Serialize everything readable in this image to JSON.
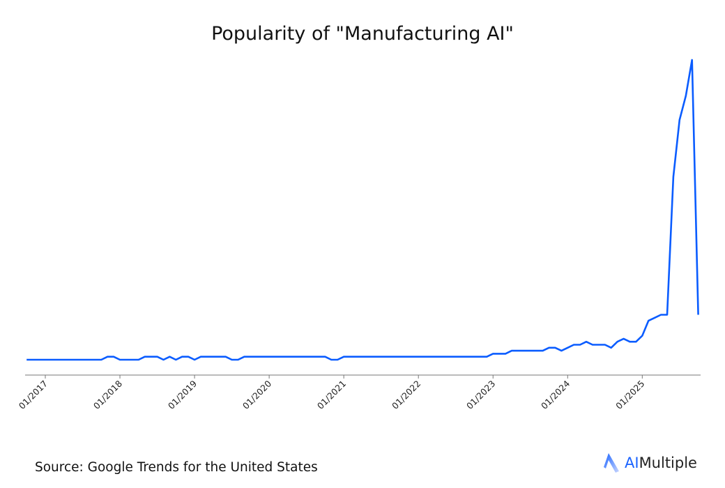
{
  "chart_data": {
    "type": "line",
    "title": "Popularity of \"Manufacturing AI\"",
    "xlabel": "",
    "ylabel": "",
    "grid": false,
    "legend": "none",
    "line_color": "#0a5cff",
    "axis_color": "#777777",
    "ylim": [
      -5,
      102
    ],
    "x_tick_labels": [
      "01/2017",
      "01/2018",
      "01/2019",
      "01/2020",
      "01/2021",
      "01/2022",
      "01/2023",
      "01/2024",
      "01/2025"
    ],
    "x": [
      "2016-10",
      "2016-11",
      "2016-12",
      "2017-01",
      "2017-02",
      "2017-03",
      "2017-04",
      "2017-05",
      "2017-06",
      "2017-07",
      "2017-08",
      "2017-09",
      "2017-10",
      "2017-11",
      "2017-12",
      "2018-01",
      "2018-02",
      "2018-03",
      "2018-04",
      "2018-05",
      "2018-06",
      "2018-07",
      "2018-08",
      "2018-09",
      "2018-10",
      "2018-11",
      "2018-12",
      "2019-01",
      "2019-02",
      "2019-03",
      "2019-04",
      "2019-05",
      "2019-06",
      "2019-07",
      "2019-08",
      "2019-09",
      "2019-10",
      "2019-11",
      "2019-12",
      "2020-01",
      "2020-02",
      "2020-03",
      "2020-04",
      "2020-05",
      "2020-06",
      "2020-07",
      "2020-08",
      "2020-09",
      "2020-10",
      "2020-11",
      "2020-12",
      "2021-01",
      "2021-02",
      "2021-03",
      "2021-04",
      "2021-05",
      "2021-06",
      "2021-07",
      "2021-08",
      "2021-09",
      "2021-10",
      "2021-11",
      "2021-12",
      "2022-01",
      "2022-02",
      "2022-03",
      "2022-04",
      "2022-05",
      "2022-06",
      "2022-07",
      "2022-08",
      "2022-09",
      "2022-10",
      "2022-11",
      "2022-12",
      "2023-01",
      "2023-02",
      "2023-03",
      "2023-04",
      "2023-05",
      "2023-06",
      "2023-07",
      "2023-08",
      "2023-09",
      "2023-10",
      "2023-11",
      "2023-12",
      "2024-01",
      "2024-02",
      "2024-03",
      "2024-04",
      "2024-05",
      "2024-06",
      "2024-07",
      "2024-08",
      "2024-09",
      "2024-10",
      "2024-11",
      "2024-12",
      "2025-01",
      "2025-02",
      "2025-03",
      "2025-04",
      "2025-05",
      "2025-06",
      "2025-07",
      "2025-08",
      "2025-09",
      "2025-10"
    ],
    "values": [
      0,
      0,
      0,
      0,
      0,
      0,
      0,
      0,
      0,
      0,
      0,
      0,
      0,
      1,
      1,
      0,
      0,
      0,
      0,
      1,
      1,
      1,
      0,
      1,
      0,
      1,
      1,
      0,
      1,
      1,
      1,
      1,
      1,
      0,
      0,
      1,
      1,
      1,
      1,
      1,
      1,
      1,
      1,
      1,
      1,
      1,
      1,
      1,
      1,
      0,
      0,
      1,
      1,
      1,
      1,
      1,
      1,
      1,
      1,
      1,
      1,
      1,
      1,
      1,
      1,
      1,
      1,
      1,
      1,
      1,
      1,
      1,
      1,
      1,
      1,
      2,
      2,
      2,
      3,
      3,
      3,
      3,
      3,
      3,
      4,
      4,
      3,
      4,
      5,
      5,
      6,
      5,
      5,
      5,
      4,
      6,
      7,
      6,
      6,
      8,
      13,
      14,
      15,
      15,
      61,
      80,
      88,
      100,
      15
    ]
  },
  "footer": {
    "source": "Source: Google Trends for the United States",
    "logo_ai": "AI",
    "logo_rest": "Multiple"
  }
}
